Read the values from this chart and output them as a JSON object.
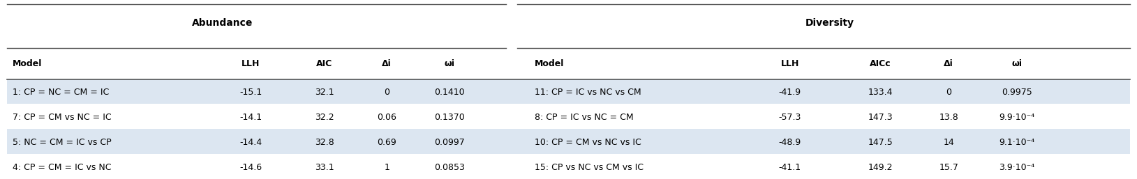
{
  "title_abundance": "Abundance",
  "title_diversity": "Diversity",
  "header_abundance": [
    "Model",
    "LLH",
    "AIC",
    "Δi",
    "ωi"
  ],
  "header_diversity": [
    "Model",
    "LLH",
    "AICc",
    "Δi",
    "ωi"
  ],
  "rows_abundance": [
    [
      "1: CP = NC = CM = IC",
      "-15.1",
      "32.1",
      "0",
      "0.1410"
    ],
    [
      "7: CP = CM vs NC = IC",
      "-14.1",
      "32.2",
      "0.06",
      "0.1370"
    ],
    [
      "5: NC = CM = IC vs CP",
      "-14.4",
      "32.8",
      "0.69",
      "0.0997"
    ],
    [
      "4: CP = CM = IC vs NC",
      "-14.6",
      "33.1",
      "1",
      "0.0853"
    ]
  ],
  "rows_diversity": [
    [
      "11: CP = IC vs NC vs CM",
      "-41.9",
      "133.4",
      "0",
      "0.9975"
    ],
    [
      "8: CP = IC vs NC = CM",
      "-57.3",
      "147.3",
      "13.8",
      "9.9·10⁻⁴"
    ],
    [
      "10: CP = CM vs NC vs IC",
      "-48.9",
      "147.5",
      "14",
      "9.1·10⁻⁴"
    ],
    [
      "15: CP vs NC vs CM vs IC",
      "-41.1",
      "149.2",
      "15.7",
      "3.9·10⁻⁴"
    ]
  ],
  "bg_color_odd": "#dce6f1",
  "bg_color_even": "#ffffff",
  "header_bg": "#ffffff",
  "line_color": "#aaaaaa",
  "text_color": "#000000",
  "font_size": 9,
  "header_font_size": 9
}
